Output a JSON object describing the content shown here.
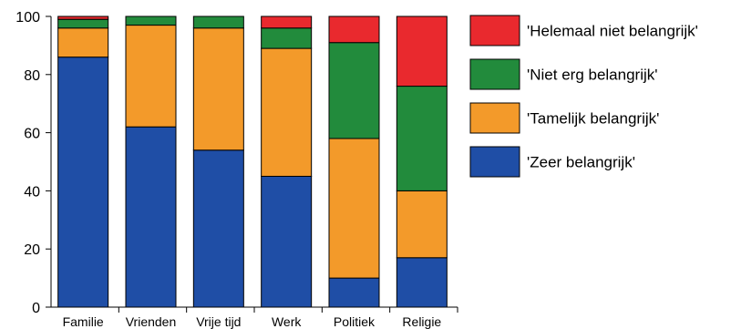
{
  "chart_data": {
    "type": "bar",
    "stacked": true,
    "title": "",
    "xlabel": "",
    "ylabel": "",
    "ylim": [
      0,
      100
    ],
    "yticks": [
      0,
      20,
      40,
      60,
      80,
      100
    ],
    "grid": false,
    "legend_position": "right",
    "categories": [
      "Familie",
      "Vrienden",
      "Vrije tijd",
      "Werk",
      "Politiek",
      "Religie"
    ],
    "series": [
      {
        "name": "'Zeer belangrijk'",
        "color": "#1f4ea6",
        "values": [
          86,
          62,
          54,
          45,
          10,
          17
        ]
      },
      {
        "name": "'Tamelijk belangrijk'",
        "color": "#f39a2a",
        "values": [
          10,
          35,
          42,
          44,
          48,
          23
        ]
      },
      {
        "name": "'Niet erg belangrijk'",
        "color": "#228b3c",
        "values": [
          3,
          3,
          4,
          7,
          33,
          36
        ]
      },
      {
        "name": "'Helemaal niet belangrijk'",
        "color": "#e9292e",
        "values": [
          1,
          0,
          0,
          4,
          9,
          24
        ]
      }
    ],
    "legend_order": [
      3,
      2,
      1,
      0
    ]
  }
}
